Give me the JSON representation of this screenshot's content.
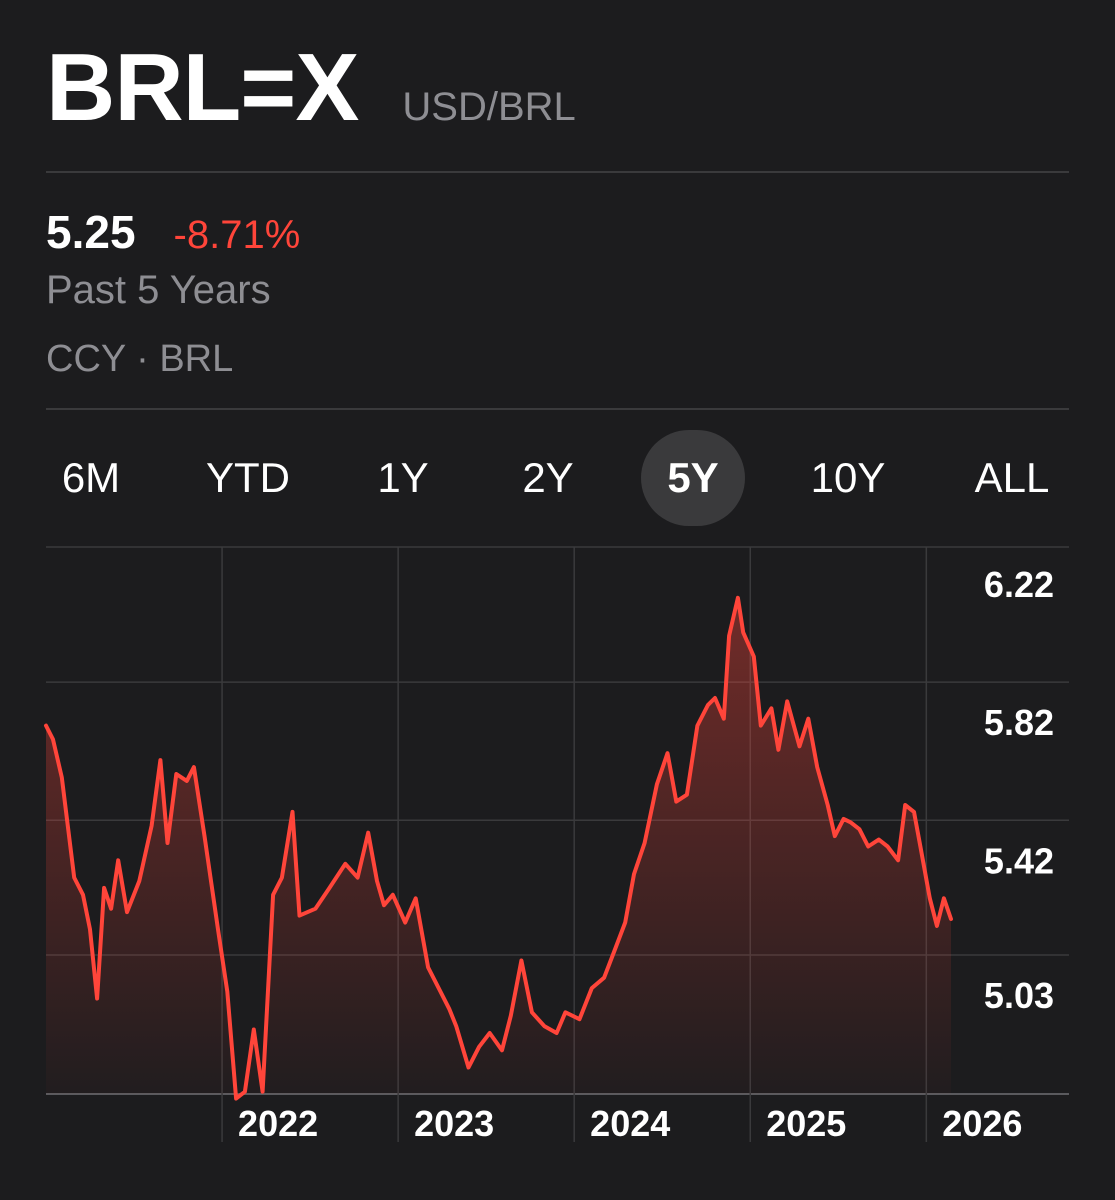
{
  "header": {
    "symbol": "BRL=X",
    "pair": "USD/BRL"
  },
  "quote": {
    "price": "5.25",
    "change": "-8.71%",
    "period": "Past 5 Years",
    "meta": "CCY · BRL"
  },
  "tabs": [
    {
      "label": "6M",
      "active": false
    },
    {
      "label": "YTD",
      "active": false
    },
    {
      "label": "1Y",
      "active": false
    },
    {
      "label": "2Y",
      "active": false
    },
    {
      "label": "5Y",
      "active": true
    },
    {
      "label": "10Y",
      "active": false
    },
    {
      "label": "ALL",
      "active": false
    }
  ],
  "colors": {
    "line": "#ff453a",
    "change_negative": "#ff453a",
    "background": "#1c1c1e"
  },
  "chart_data": {
    "type": "area",
    "title": "",
    "xlabel": "",
    "ylabel": "",
    "x_ticks": [
      {
        "label": "2022",
        "x": 2022.0
      },
      {
        "label": "2023",
        "x": 2023.0
      },
      {
        "label": "2024",
        "x": 2024.0
      },
      {
        "label": "2025",
        "x": 2025.0
      },
      {
        "label": "2026",
        "x": 2026.0
      }
    ],
    "y_ticks": [
      {
        "label": "6.22",
        "value": 6.22
      },
      {
        "label": "5.82",
        "value": 5.82
      },
      {
        "label": "5.42",
        "value": 5.42
      },
      {
        "label": "5.03",
        "value": 5.03
      }
    ],
    "xlim": [
      2021.0,
      2026.18
    ],
    "ylim": [
      4.63,
      6.22
    ],
    "grid": true,
    "series": [
      {
        "values": [
          [
            2021.0,
            5.81
          ],
          [
            2021.04,
            5.77
          ],
          [
            2021.09,
            5.66
          ],
          [
            2021.16,
            5.37
          ],
          [
            2021.21,
            5.32
          ],
          [
            2021.25,
            5.22
          ],
          [
            2021.29,
            5.02
          ],
          [
            2021.33,
            5.34
          ],
          [
            2021.37,
            5.28
          ],
          [
            2021.41,
            5.42
          ],
          [
            2021.46,
            5.27
          ],
          [
            2021.53,
            5.36
          ],
          [
            2021.6,
            5.52
          ],
          [
            2021.65,
            5.71
          ],
          [
            2021.69,
            5.47
          ],
          [
            2021.74,
            5.67
          ],
          [
            2021.8,
            5.65
          ],
          [
            2021.84,
            5.69
          ],
          [
            2021.9,
            5.49
          ],
          [
            2021.98,
            5.21
          ],
          [
            2022.03,
            5.04
          ],
          [
            2022.08,
            4.73
          ],
          [
            2022.13,
            4.75
          ],
          [
            2022.18,
            4.93
          ],
          [
            2022.23,
            4.75
          ],
          [
            2022.29,
            5.32
          ],
          [
            2022.34,
            5.37
          ],
          [
            2022.4,
            5.56
          ],
          [
            2022.44,
            5.26
          ],
          [
            2022.53,
            5.28
          ],
          [
            2022.61,
            5.34
          ],
          [
            2022.7,
            5.41
          ],
          [
            2022.77,
            5.37
          ],
          [
            2022.83,
            5.5
          ],
          [
            2022.88,
            5.36
          ],
          [
            2022.92,
            5.29
          ],
          [
            2022.97,
            5.32
          ],
          [
            2023.04,
            5.24
          ],
          [
            2023.1,
            5.31
          ],
          [
            2023.17,
            5.11
          ],
          [
            2023.24,
            5.04
          ],
          [
            2023.29,
            4.99
          ],
          [
            2023.33,
            4.94
          ],
          [
            2023.4,
            4.82
          ],
          [
            2023.46,
            4.88
          ],
          [
            2023.52,
            4.92
          ],
          [
            2023.59,
            4.87
          ],
          [
            2023.64,
            4.97
          ],
          [
            2023.7,
            5.13
          ],
          [
            2023.76,
            4.98
          ],
          [
            2023.83,
            4.94
          ],
          [
            2023.9,
            4.92
          ],
          [
            2023.95,
            4.98
          ],
          [
            2024.03,
            4.96
          ],
          [
            2024.1,
            5.05
          ],
          [
            2024.17,
            5.08
          ],
          [
            2024.23,
            5.16
          ],
          [
            2024.29,
            5.24
          ],
          [
            2024.34,
            5.38
          ],
          [
            2024.4,
            5.47
          ],
          [
            2024.47,
            5.64
          ],
          [
            2024.53,
            5.73
          ],
          [
            2024.58,
            5.59
          ],
          [
            2024.64,
            5.61
          ],
          [
            2024.7,
            5.81
          ],
          [
            2024.76,
            5.87
          ],
          [
            2024.8,
            5.89
          ],
          [
            2024.85,
            5.83
          ],
          [
            2024.88,
            6.07
          ],
          [
            2024.93,
            6.18
          ],
          [
            2024.96,
            6.08
          ],
          [
            2025.02,
            6.01
          ],
          [
            2025.06,
            5.81
          ],
          [
            2025.12,
            5.86
          ],
          [
            2025.16,
            5.74
          ],
          [
            2025.21,
            5.88
          ],
          [
            2025.28,
            5.75
          ],
          [
            2025.33,
            5.83
          ],
          [
            2025.38,
            5.69
          ],
          [
            2025.44,
            5.58
          ],
          [
            2025.48,
            5.49
          ],
          [
            2025.53,
            5.54
          ],
          [
            2025.57,
            5.53
          ],
          [
            2025.62,
            5.51
          ],
          [
            2025.67,
            5.46
          ],
          [
            2025.73,
            5.48
          ],
          [
            2025.78,
            5.46
          ],
          [
            2025.84,
            5.42
          ],
          [
            2025.88,
            5.58
          ],
          [
            2025.93,
            5.56
          ],
          [
            2025.97,
            5.45
          ],
          [
            2026.02,
            5.31
          ],
          [
            2026.06,
            5.23
          ],
          [
            2026.1,
            5.31
          ],
          [
            2026.14,
            5.25
          ]
        ]
      }
    ]
  }
}
